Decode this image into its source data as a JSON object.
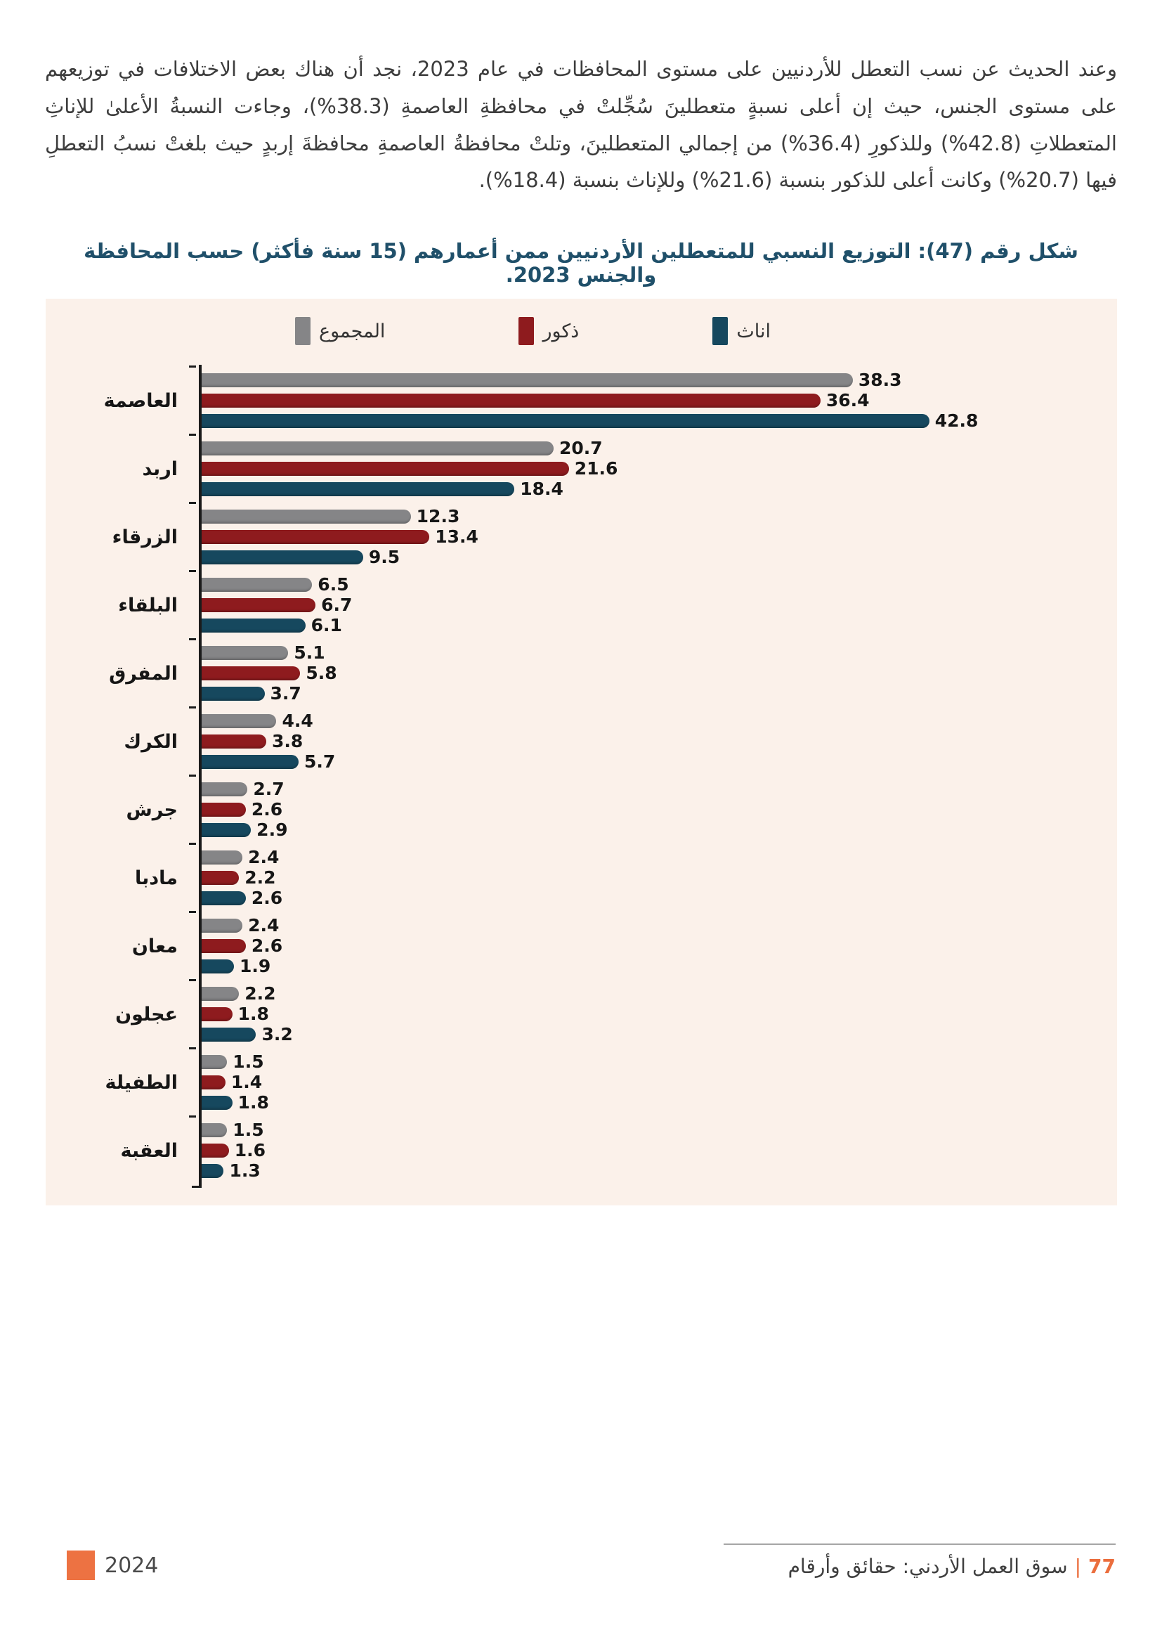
{
  "document": {
    "paragraph": "وعند الحديث عن نسب التعطل للأردنيين على مستوى المحافظات في عام 2023، نجد أن هناك بعض الاختلافات في توزيعهم على مستوى الجنس، حيث إن أعلى نسبةٍ متعطلينَ سُجِّلتْ في محافظةِ العاصمةِ (38.3%)، وجاءت النسبةُ الأعلىٰ للإناثِ المتعطلاتِ (42.8%) وللذكورِ (36.4%) من إجمالي المتعطلينَ، وتلتْ محافظةُ العاصمةِ محافظةَ إربدٍ حيث بلغتْ نسبُ التعطلِ فيها (20.7%) وكانت أعلى للذكور بنسبة (21.6%) وللإناث بنسبة (18.4%).",
    "figure_title": "شكل رقم (47): التوزيع النسبي للمتعطلين الأردنيين ممن أعمارهم (15 سنة فأكثر) حسب المحافظة والجنس 2023.",
    "footer": {
      "page_number": "77",
      "separator": "|",
      "report_title": "سوق العمل الأردني: حقائق وأرقام",
      "year": "2024"
    }
  },
  "chart_data": {
    "type": "bar",
    "orientation": "horizontal",
    "title": "التوزيع النسبي للمتعطلين الأردنيين ممن أعمارهم (15 سنة فأكثر) حسب المحافظة والجنس 2023",
    "legend_position": "top",
    "value_labels": true,
    "xlim": [
      0,
      45
    ],
    "grid": false,
    "background": "#fbf1ea",
    "categories": [
      "العاصمة",
      "اربد",
      "الزرقاء",
      "البلقاء",
      "المفرق",
      "الكرك",
      "جرش",
      "مادبا",
      "معان",
      "عجلون",
      "الطفيلة",
      "العقبة"
    ],
    "series": [
      {
        "name": "المجموع",
        "color": "#858587",
        "values": [
          38.3,
          20.7,
          12.3,
          6.5,
          5.1,
          4.4,
          2.7,
          2.4,
          2.4,
          2.2,
          1.5,
          1.5
        ]
      },
      {
        "name": "ذكور",
        "color": "#8e1b1e",
        "values": [
          36.4,
          21.6,
          13.4,
          6.7,
          5.8,
          3.8,
          2.6,
          2.2,
          2.6,
          1.8,
          1.4,
          1.6
        ]
      },
      {
        "name": "اناث",
        "color": "#16485e",
        "values": [
          42.8,
          18.4,
          9.5,
          6.1,
          3.7,
          5.7,
          2.9,
          2.6,
          1.9,
          3.2,
          1.8,
          1.3
        ]
      }
    ],
    "axis_color": "#1b1b1b"
  }
}
